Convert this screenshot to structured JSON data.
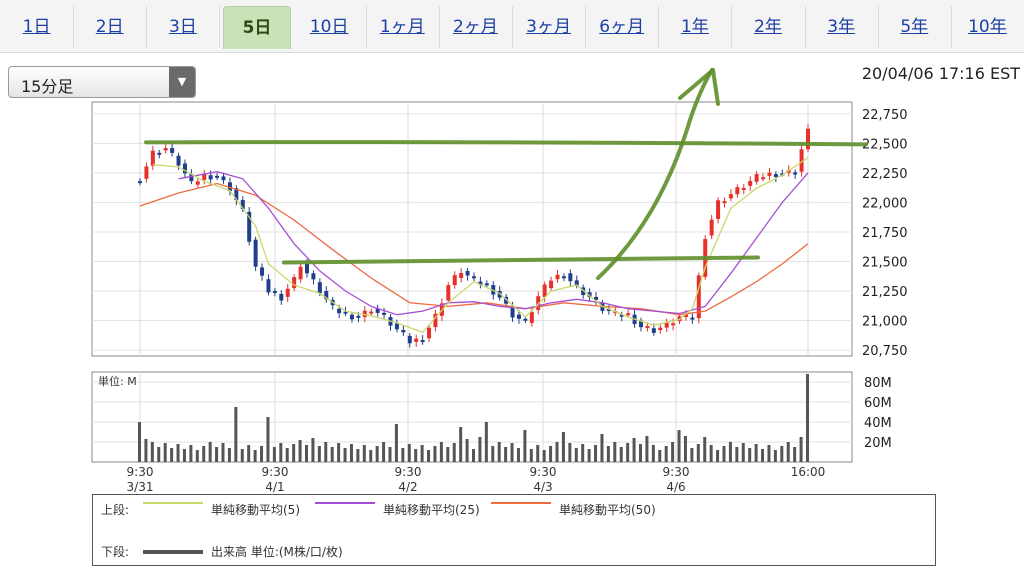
{
  "tabs": [
    {
      "label": "1日",
      "active": false
    },
    {
      "label": "2日",
      "active": false
    },
    {
      "label": "3日",
      "active": false
    },
    {
      "label": "5日",
      "active": true
    },
    {
      "label": "10日",
      "active": false
    },
    {
      "label": "1ヶ月",
      "active": false
    },
    {
      "label": "2ヶ月",
      "active": false
    },
    {
      "label": "3ヶ月",
      "active": false
    },
    {
      "label": "6ヶ月",
      "active": false
    },
    {
      "label": "1年",
      "active": false
    },
    {
      "label": "2年",
      "active": false
    },
    {
      "label": "3年",
      "active": false
    },
    {
      "label": "5年",
      "active": false
    },
    {
      "label": "10年",
      "active": false
    }
  ],
  "interval_select": {
    "value": "15分足"
  },
  "timestamp": "20/04/06 17:16 EST",
  "legend": {
    "upper_label": "上段:",
    "lower_label": "下段:",
    "sma5": "単純移動平均(5)",
    "sma25": "単純移動平均(25)",
    "sma50": "単純移動平均(50)",
    "volume": "出来高 単位:(M株/口/枚)"
  },
  "colors": {
    "up_candle": "#e8302a",
    "down_candle": "#1f3f8c",
    "sma5": "#c8d86a",
    "sma25": "#a64fd6",
    "sma50": "#ee6a40",
    "volume": "#555555",
    "annotation": "#5e8e2a",
    "active_tab": "#c9e3b8"
  },
  "chart_data": {
    "type": "candlestick",
    "x_ticks": [
      {
        "time": "9:30",
        "date": "3/31"
      },
      {
        "time": "9:30",
        "date": "4/1"
      },
      {
        "time": "9:30",
        "date": "4/2"
      },
      {
        "time": "9:30",
        "date": "4/3"
      },
      {
        "time": "9:30",
        "date": "4/6"
      },
      {
        "time": "16:00",
        "date": ""
      }
    ],
    "price_ticks": [
      "22,750",
      "22,500",
      "22,250",
      "22,000",
      "21,750",
      "21,500",
      "21,250",
      "21,000",
      "20,750"
    ],
    "volume_ticks": [
      "80M",
      "60M",
      "40M",
      "20M"
    ],
    "volume_unit_label": "単位: M",
    "ylim": [
      20700,
      22850
    ],
    "volume_ylim": [
      0,
      90
    ],
    "annotation_levels": [
      22500,
      21500
    ],
    "price_path": [
      [
        0,
        22200
      ],
      [
        2,
        22420
      ],
      [
        4,
        22460
      ],
      [
        6,
        22330
      ],
      [
        8,
        22150
      ],
      [
        10,
        22230
      ],
      [
        12,
        22220
      ],
      [
        14,
        22120
      ],
      [
        16,
        21920
      ],
      [
        18,
        21450
      ],
      [
        20,
        21250
      ],
      [
        22,
        21200
      ],
      [
        24,
        21350
      ],
      [
        25,
        21480
      ],
      [
        26,
        21400
      ],
      [
        28,
        21250
      ],
      [
        30,
        21100
      ],
      [
        32,
        21050
      ],
      [
        34,
        21030
      ],
      [
        36,
        21100
      ],
      [
        38,
        21030
      ],
      [
        40,
        20920
      ],
      [
        42,
        20820
      ],
      [
        44,
        20850
      ],
      [
        46,
        21040
      ],
      [
        48,
        21300
      ],
      [
        50,
        21420
      ],
      [
        52,
        21330
      ],
      [
        54,
        21300
      ],
      [
        56,
        21200
      ],
      [
        58,
        21050
      ],
      [
        60,
        20980
      ],
      [
        62,
        21200
      ],
      [
        64,
        21350
      ],
      [
        66,
        21400
      ],
      [
        68,
        21280
      ],
      [
        70,
        21200
      ],
      [
        72,
        21100
      ],
      [
        74,
        21050
      ],
      [
        76,
        21050
      ],
      [
        78,
        20950
      ],
      [
        80,
        20920
      ],
      [
        82,
        20960
      ],
      [
        84,
        21030
      ],
      [
        86,
        21020
      ],
      [
        88,
        21720
      ],
      [
        90,
        22000
      ],
      [
        92,
        22070
      ],
      [
        94,
        22140
      ],
      [
        96,
        22210
      ],
      [
        98,
        22240
      ],
      [
        100,
        22250
      ],
      [
        102,
        22260
      ],
      [
        103,
        22450
      ],
      [
        104,
        22600
      ]
    ],
    "sma5": [
      [
        2,
        22320
      ],
      [
        6,
        22300
      ],
      [
        10,
        22180
      ],
      [
        14,
        22100
      ],
      [
        18,
        21800
      ],
      [
        20,
        21480
      ],
      [
        24,
        21300
      ],
      [
        28,
        21230
      ],
      [
        32,
        21080
      ],
      [
        36,
        21040
      ],
      [
        40,
        20980
      ],
      [
        44,
        20900
      ],
      [
        48,
        21150
      ],
      [
        52,
        21330
      ],
      [
        56,
        21230
      ],
      [
        60,
        21030
      ],
      [
        64,
        21250
      ],
      [
        68,
        21300
      ],
      [
        72,
        21120
      ],
      [
        76,
        21030
      ],
      [
        80,
        20960
      ],
      [
        84,
        21010
      ],
      [
        86,
        21100
      ],
      [
        88,
        21450
      ],
      [
        92,
        21950
      ],
      [
        96,
        22120
      ],
      [
        100,
        22230
      ],
      [
        104,
        22380
      ]
    ],
    "sma25": [
      [
        6,
        22200
      ],
      [
        12,
        22260
      ],
      [
        16,
        22200
      ],
      [
        20,
        21950
      ],
      [
        24,
        21650
      ],
      [
        28,
        21420
      ],
      [
        32,
        21250
      ],
      [
        36,
        21120
      ],
      [
        40,
        21050
      ],
      [
        44,
        21080
      ],
      [
        48,
        21150
      ],
      [
        52,
        21160
      ],
      [
        56,
        21120
      ],
      [
        60,
        21100
      ],
      [
        64,
        21150
      ],
      [
        68,
        21180
      ],
      [
        72,
        21150
      ],
      [
        76,
        21100
      ],
      [
        80,
        21080
      ],
      [
        84,
        21060
      ],
      [
        88,
        21120
      ],
      [
        92,
        21400
      ],
      [
        96,
        21700
      ],
      [
        100,
        22000
      ],
      [
        104,
        22250
      ]
    ],
    "sma50": [
      [
        0,
        21970
      ],
      [
        6,
        22080
      ],
      [
        12,
        22160
      ],
      [
        18,
        22060
      ],
      [
        24,
        21850
      ],
      [
        30,
        21600
      ],
      [
        36,
        21360
      ],
      [
        42,
        21150
      ],
      [
        48,
        21120
      ],
      [
        54,
        21150
      ],
      [
        60,
        21100
      ],
      [
        66,
        21150
      ],
      [
        72,
        21120
      ],
      [
        78,
        21100
      ],
      [
        84,
        21050
      ],
      [
        88,
        21080
      ],
      [
        92,
        21200
      ],
      [
        96,
        21330
      ],
      [
        100,
        21480
      ],
      [
        104,
        21650
      ]
    ],
    "volume_spikes": [
      [
        0,
        40
      ],
      [
        15,
        55
      ],
      [
        20,
        45
      ],
      [
        40,
        38
      ],
      [
        50,
        35
      ],
      [
        54,
        40
      ],
      [
        60,
        32
      ],
      [
        66,
        30
      ],
      [
        72,
        28
      ],
      [
        84,
        32
      ],
      [
        85,
        26
      ],
      [
        88,
        25
      ],
      [
        104,
        88
      ],
      [
        105,
        30
      ]
    ]
  }
}
